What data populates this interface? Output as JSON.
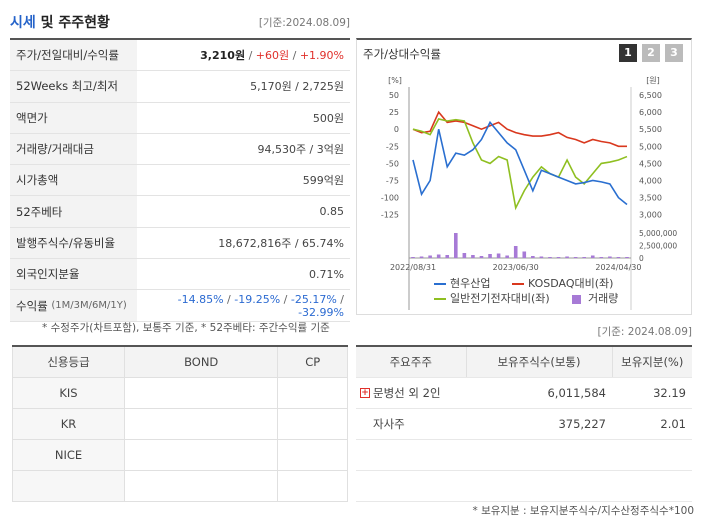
{
  "header": {
    "title_a": "시세",
    "title_b": "및 주주현황",
    "date": "[기준:2024.08.09]"
  },
  "summary": {
    "rows": [
      {
        "label": "주가/전일대비/수익률",
        "price": "3,210원",
        "change": "+60원",
        "pct": "+1.90%"
      },
      {
        "label": "52Weeks 최고/최저",
        "value": "5,170원 / 2,725원"
      },
      {
        "label": "액면가",
        "value": "500원"
      },
      {
        "label": "거래량/거래대금",
        "value": "94,530주 / 3억원"
      },
      {
        "label": "시가총액",
        "value": "599억원"
      },
      {
        "label": "52주베타",
        "value": "0.85"
      },
      {
        "label": "발행주식수/유동비율",
        "value": "18,672,816주 / 65.74%"
      },
      {
        "label": "외국인지분율",
        "value": "0.71%"
      },
      {
        "label": "수익률",
        "sub": "(1M/3M/6M/1Y)",
        "r1": "-14.85%",
        "r2": "-19.25%",
        "r3": "-25.17%",
        "r4": "-32.99%"
      }
    ],
    "note": "* 수정주가(차트포함), 보통주 기준, * 52주베타: 주간수익률 기준"
  },
  "chart": {
    "title": "주가/상대수익률",
    "tabs": [
      "1",
      "2",
      "3"
    ],
    "left_unit": "[%]",
    "right_unit": "[원]",
    "legend": [
      "현우산업",
      "KOSDAQ대비(좌)",
      "일반전기전자대비(좌)",
      "거래량"
    ]
  },
  "chart_data": {
    "type": "line",
    "x_ticks": [
      "2022/08/31",
      "2023/06/30",
      "2024/04/30"
    ],
    "left_ticks": [
      "50",
      "25",
      "0",
      "-25",
      "-50",
      "-75",
      "-100",
      "-125"
    ],
    "right_ticks": [
      "6,500",
      "6,000",
      "5,500",
      "5,000",
      "4,500",
      "4,000",
      "3,500",
      "3,000"
    ],
    "vol_ticks": [
      "5,000,000",
      "2,500,000",
      "0"
    ],
    "colors": {
      "price": "#2a6fd0",
      "kosdaq": "#d9381e",
      "sector": "#8fbf21",
      "volume": "#a77ad6"
    },
    "price": [
      -45,
      -95,
      -75,
      0,
      -55,
      -35,
      -38,
      -30,
      -15,
      10,
      -5,
      -20,
      -30,
      -60,
      -90,
      -60,
      -65,
      -70,
      -75,
      -80,
      -78,
      -75,
      -77,
      -80,
      -100,
      -110
    ],
    "kosdaq": [
      0,
      -5,
      -3,
      25,
      10,
      12,
      10,
      5,
      0,
      5,
      10,
      0,
      -5,
      -8,
      -10,
      -10,
      -8,
      -5,
      -12,
      -15,
      -20,
      -15,
      -18,
      -20,
      -25,
      -25
    ],
    "sector": [
      0,
      -3,
      -8,
      15,
      12,
      14,
      12,
      -20,
      -45,
      -50,
      -40,
      -45,
      -115,
      -90,
      -70,
      -55,
      -65,
      -70,
      -45,
      -70,
      -80,
      -65,
      -50,
      -48,
      -45,
      -40
    ],
    "volume": [
      0.2,
      0.3,
      0.5,
      0.7,
      0.6,
      5.0,
      1.0,
      0.6,
      0.4,
      0.8,
      0.9,
      0.5,
      2.4,
      1.3,
      0.4,
      0.3,
      0.2,
      0.2,
      0.3,
      0.2,
      0.2,
      0.5,
      0.2,
      0.3,
      0.2,
      0.2
    ]
  },
  "credit": {
    "headers": [
      "신용등급",
      "BOND",
      "CP"
    ],
    "rows": [
      "KIS",
      "KR",
      "NICE",
      ""
    ]
  },
  "holders": {
    "date": "[기준: 2024.08.09]",
    "headers": [
      "주요주주",
      "보유주식수(보통)",
      "보유지분(%)"
    ],
    "rows": [
      {
        "name": "문병선 외 2인",
        "shares": "6,011,584",
        "pct": "32.19",
        "expand": true
      },
      {
        "name": "자사주",
        "shares": "375,227",
        "pct": "2.01",
        "expand": false
      },
      {
        "name": "",
        "shares": "",
        "pct": ""
      },
      {
        "name": "",
        "shares": "",
        "pct": ""
      }
    ],
    "note": "* 보유지분 : 보유지분주식수/지수산정주식수*100"
  }
}
